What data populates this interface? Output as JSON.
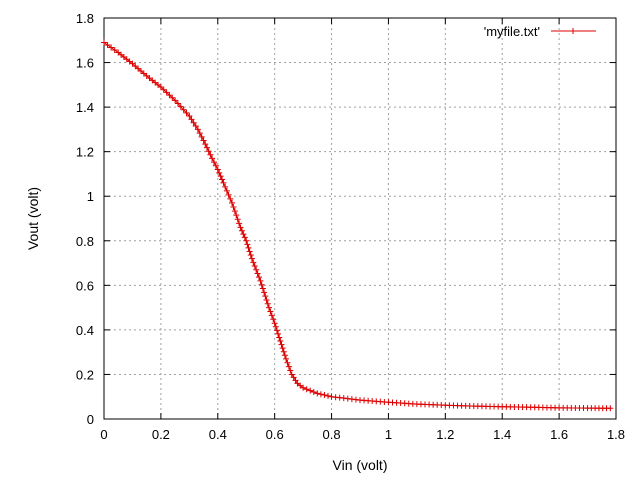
{
  "chart_data": {
    "type": "line",
    "title": "",
    "xlabel": "Vin (volt)",
    "ylabel": "Vout (volt)",
    "xlim": [
      0,
      1.8
    ],
    "ylim": [
      0,
      1.8
    ],
    "x_ticks": [
      "0",
      "0.2",
      "0.4",
      "0.6",
      "0.8",
      "1",
      "1.2",
      "1.4",
      "1.6",
      "1.8"
    ],
    "y_ticks": [
      "0",
      "0.2",
      "0.4",
      "0.6",
      "0.8",
      "1",
      "1.2",
      "1.4",
      "1.6",
      "1.8"
    ],
    "grid": true,
    "legend_position": "top-right",
    "marker": "plus",
    "series": [
      {
        "name": "'myfile.txt'",
        "color": "#dd0000",
        "points": [
          [
            0.0,
            1.69
          ],
          [
            0.05,
            1.645
          ],
          [
            0.1,
            1.595
          ],
          [
            0.15,
            1.54
          ],
          [
            0.2,
            1.49
          ],
          [
            0.25,
            1.43
          ],
          [
            0.3,
            1.36
          ],
          [
            0.33,
            1.3
          ],
          [
            0.35,
            1.25
          ],
          [
            0.38,
            1.17
          ],
          [
            0.4,
            1.12
          ],
          [
            0.42,
            1.06
          ],
          [
            0.45,
            0.97
          ],
          [
            0.48,
            0.86
          ],
          [
            0.5,
            0.8
          ],
          [
            0.52,
            0.72
          ],
          [
            0.55,
            0.62
          ],
          [
            0.58,
            0.5
          ],
          [
            0.6,
            0.43
          ],
          [
            0.62,
            0.35
          ],
          [
            0.64,
            0.27
          ],
          [
            0.66,
            0.2
          ],
          [
            0.68,
            0.16
          ],
          [
            0.7,
            0.14
          ],
          [
            0.75,
            0.115
          ],
          [
            0.8,
            0.1
          ],
          [
            0.9,
            0.085
          ],
          [
            1.0,
            0.075
          ],
          [
            1.1,
            0.067
          ],
          [
            1.2,
            0.062
          ],
          [
            1.3,
            0.058
          ],
          [
            1.4,
            0.055
          ],
          [
            1.5,
            0.053
          ],
          [
            1.6,
            0.05
          ],
          [
            1.7,
            0.049
          ],
          [
            1.78,
            0.048
          ]
        ]
      }
    ]
  }
}
